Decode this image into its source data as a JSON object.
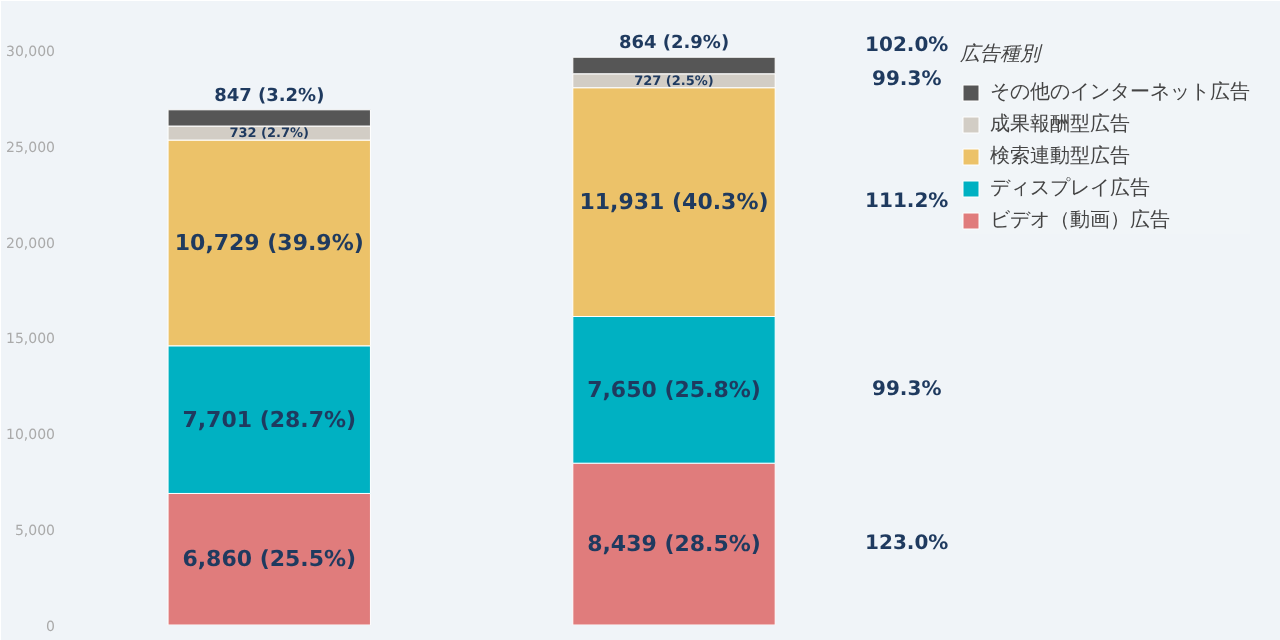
{
  "chart_data": {
    "type": "bar",
    "stacked": true,
    "categories": [
      null,
      null
    ],
    "legend_title": "広告種別",
    "legend": "top right",
    "grid": false,
    "ylim": [
      0,
      31500
    ],
    "yticks": [
      {
        "value": 0,
        "label": "0"
      },
      {
        "value": 5000,
        "label": "5,000"
      },
      {
        "value": 10000,
        "label": "10,000"
      },
      {
        "value": 15000,
        "label": "15,000"
      },
      {
        "value": 20000,
        "label": "20,000"
      },
      {
        "value": 25000,
        "label": "25,000"
      },
      {
        "value": 30000,
        "label": "30,000"
      }
    ],
    "series": [
      {
        "name": "ビデオ（動画）広告",
        "color": "#e07c7c",
        "values": [
          6860,
          8439
        ],
        "value_labels": [
          "6,860 (25.5%)",
          "8,439 (28.5%)"
        ]
      },
      {
        "name": "ディスプレイ広告",
        "color": "#00b1c2",
        "values": [
          7701,
          7650
        ],
        "value_labels": [
          "7,701 (28.7%)",
          "7,650 (25.8%)"
        ]
      },
      {
        "name": "検索連動型広告",
        "color": "#ecc269",
        "values": [
          10729,
          11931
        ],
        "value_labels": [
          "10,729 (39.9%)",
          "11,931 (40.3%)"
        ]
      },
      {
        "name": "成果報酬型広告",
        "color": "#d2cdc5",
        "values": [
          732,
          727
        ],
        "value_labels": [
          "732 (2.7%)",
          "727 (2.5%)"
        ]
      },
      {
        "name": "その他のインターネット広告",
        "color": "#565656",
        "values": [
          847,
          864
        ],
        "value_labels": [
          "847 (3.2%)",
          "864 (2.9%)"
        ]
      }
    ],
    "annotations": [
      "123.0%",
      "99.3%",
      "111.2%",
      "99.3%",
      "102.0%"
    ]
  }
}
